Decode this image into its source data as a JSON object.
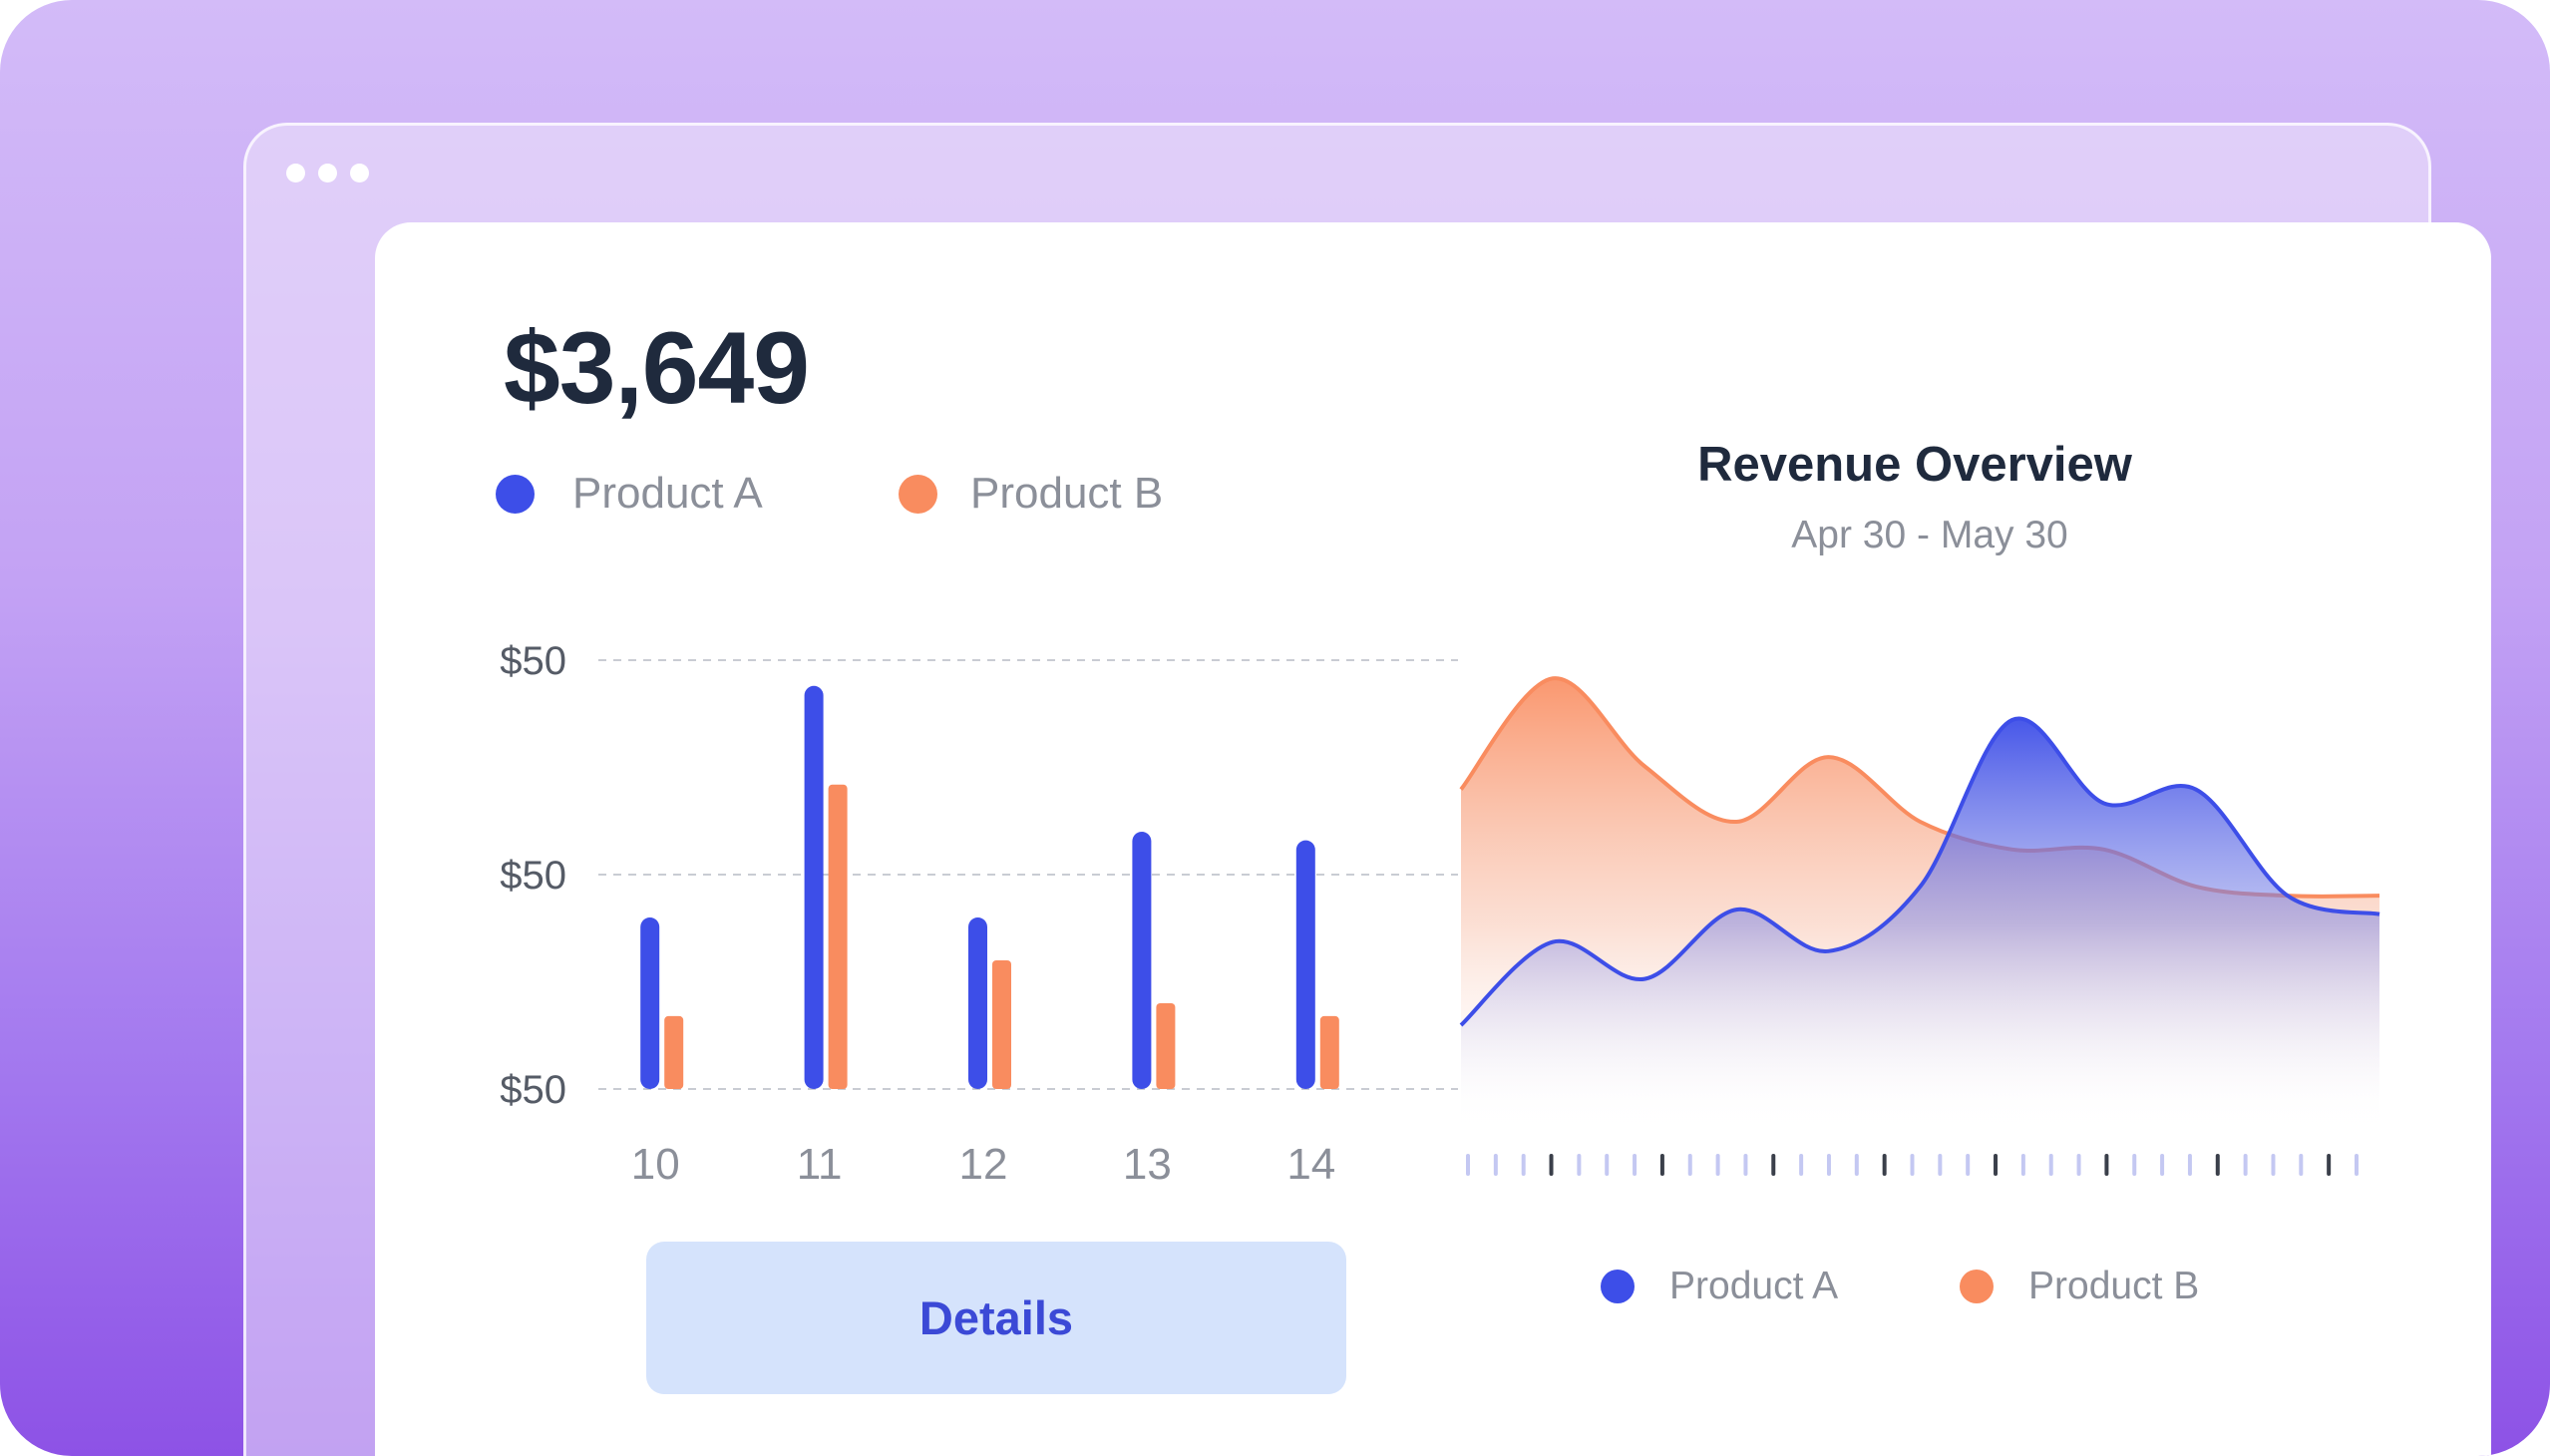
{
  "summary": {
    "total": "$3,649"
  },
  "legend_top": [
    {
      "label": "Product A",
      "color": "#3d4ee8"
    },
    {
      "label": "Product B",
      "color": "#f98c5f"
    }
  ],
  "area_header": {
    "title": "Revenue Overview",
    "subtitle": "Apr 30 - May 30"
  },
  "legend_bottom": [
    {
      "label": "Product A",
      "color": "#3d4ee8"
    },
    {
      "label": "Product B",
      "color": "#f98c5f"
    }
  ],
  "details_button": {
    "label": "Details"
  },
  "colors": {
    "product_a": "#3d4ee8",
    "product_b": "#f98c5f",
    "axis_text": "#555b66",
    "gridline": "#c9ccd3",
    "title": "#1f2a3d",
    "button_bg": "#d5e3fc",
    "button_text": "#3b49d6",
    "background_top": "#d3bbf8",
    "background_bottom": "#8d52e6"
  },
  "chart_data": [
    {
      "type": "bar",
      "categories": [
        "10",
        "11",
        "12",
        "13",
        "14"
      ],
      "series": [
        {
          "name": "Product A",
          "values": [
            40,
            94,
            40,
            60,
            58
          ]
        },
        {
          "name": "Product B",
          "values": [
            17,
            71,
            30,
            20,
            17
          ]
        }
      ],
      "ytick_labels": [
        "$50",
        "$50",
        "$50"
      ],
      "ylim": [
        0,
        100
      ],
      "grid": true,
      "gridline_style": "dashed",
      "legend_position": "top-left"
    },
    {
      "type": "area",
      "title": "Revenue Overview",
      "subtitle": "Apr 30 - May 30",
      "x": [
        0,
        1,
        2,
        3,
        4,
        5,
        6,
        7,
        8,
        9,
        10
      ],
      "series": [
        {
          "name": "Product A",
          "values": [
            22,
            40,
            32,
            47,
            38,
            52,
            88,
            70,
            73,
            50,
            46
          ]
        },
        {
          "name": "Product B",
          "values": [
            73,
            97,
            78,
            66,
            80,
            66,
            60,
            60,
            52,
            50,
            50
          ]
        }
      ],
      "ylim": [
        0,
        110
      ],
      "tick_count": 33,
      "major_tick_every": 4,
      "legend_position": "bottom"
    }
  ]
}
